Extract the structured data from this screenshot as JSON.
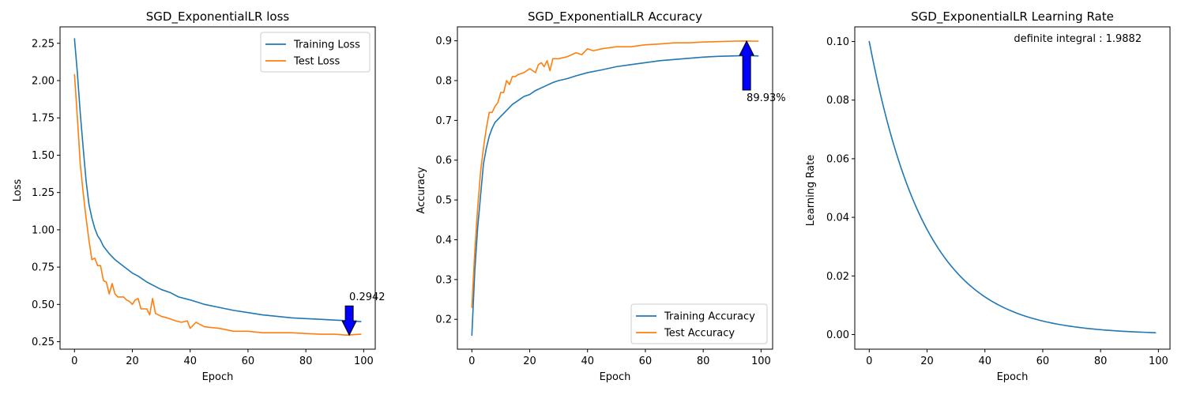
{
  "chart_data": [
    {
      "type": "line",
      "title": "SGD_ExponentialLR loss",
      "xlabel": "Epoch",
      "ylabel": "Loss",
      "xlim": [
        -5,
        104
      ],
      "ylim": [
        0.2,
        2.36
      ],
      "xticks": [
        0,
        20,
        40,
        60,
        80,
        100
      ],
      "xtick_labels": [
        "0",
        "20",
        "40",
        "60",
        "80",
        "100"
      ],
      "yticks": [
        0.25,
        0.5,
        0.75,
        1.0,
        1.25,
        1.5,
        1.75,
        2.0,
        2.25
      ],
      "ytick_labels": [
        "0.25",
        "0.50",
        "0.75",
        "1.00",
        "1.25",
        "1.50",
        "1.75",
        "2.00",
        "2.25"
      ],
      "grid": false,
      "legend": "upper-right",
      "series": [
        {
          "name": "Training Loss",
          "color": "#1f77b4",
          "points": [
            [
              0,
              2.28
            ],
            [
              1,
              2.05
            ],
            [
              2,
              1.78
            ],
            [
              3,
              1.55
            ],
            [
              4,
              1.33
            ],
            [
              5,
              1.17
            ],
            [
              6,
              1.08
            ],
            [
              7,
              1.01
            ],
            [
              8,
              0.96
            ],
            [
              9,
              0.93
            ],
            [
              10,
              0.89
            ],
            [
              12,
              0.84
            ],
            [
              14,
              0.8
            ],
            [
              16,
              0.77
            ],
            [
              18,
              0.74
            ],
            [
              20,
              0.71
            ],
            [
              22,
              0.69
            ],
            [
              25,
              0.65
            ],
            [
              28,
              0.62
            ],
            [
              30,
              0.6
            ],
            [
              33,
              0.58
            ],
            [
              36,
              0.55
            ],
            [
              40,
              0.53
            ],
            [
              45,
              0.5
            ],
            [
              50,
              0.48
            ],
            [
              55,
              0.46
            ],
            [
              60,
              0.445
            ],
            [
              65,
              0.43
            ],
            [
              70,
              0.42
            ],
            [
              75,
              0.41
            ],
            [
              80,
              0.405
            ],
            [
              85,
              0.4
            ],
            [
              90,
              0.395
            ],
            [
              95,
              0.39
            ],
            [
              99,
              0.385
            ]
          ]
        },
        {
          "name": "Test Loss",
          "color": "#ff7f0e",
          "points": [
            [
              0,
              2.04
            ],
            [
              1,
              1.75
            ],
            [
              2,
              1.44
            ],
            [
              3,
              1.25
            ],
            [
              4,
              1.08
            ],
            [
              5,
              0.93
            ],
            [
              6,
              0.8
            ],
            [
              7,
              0.81
            ],
            [
              8,
              0.76
            ],
            [
              9,
              0.76
            ],
            [
              10,
              0.66
            ],
            [
              11,
              0.65
            ],
            [
              12,
              0.57
            ],
            [
              13,
              0.64
            ],
            [
              14,
              0.57
            ],
            [
              15,
              0.55
            ],
            [
              16,
              0.55
            ],
            [
              17,
              0.55
            ],
            [
              18,
              0.53
            ],
            [
              19,
              0.52
            ],
            [
              20,
              0.5
            ],
            [
              21,
              0.53
            ],
            [
              22,
              0.54
            ],
            [
              23,
              0.47
            ],
            [
              24,
              0.47
            ],
            [
              25,
              0.47
            ],
            [
              26,
              0.43
            ],
            [
              27,
              0.54
            ],
            [
              28,
              0.44
            ],
            [
              30,
              0.42
            ],
            [
              32,
              0.41
            ],
            [
              35,
              0.39
            ],
            [
              37,
              0.38
            ],
            [
              39,
              0.39
            ],
            [
              40,
              0.34
            ],
            [
              42,
              0.38
            ],
            [
              45,
              0.35
            ],
            [
              50,
              0.34
            ],
            [
              55,
              0.32
            ],
            [
              60,
              0.32
            ],
            [
              65,
              0.31
            ],
            [
              70,
              0.31
            ],
            [
              75,
              0.31
            ],
            [
              80,
              0.305
            ],
            [
              85,
              0.3
            ],
            [
              90,
              0.3
            ],
            [
              94,
              0.2942
            ],
            [
              99,
              0.3
            ]
          ]
        }
      ],
      "annotations": [
        {
          "text": "0.2942",
          "x": 95,
          "y": 0.2942,
          "arrow": "down",
          "color": "#0000ff"
        }
      ]
    },
    {
      "type": "line",
      "title": "SGD_ExponentialLR Accuracy",
      "xlabel": "Epoch",
      "ylabel": "Accuracy",
      "xlim": [
        -5,
        104
      ],
      "ylim": [
        0.125,
        0.935
      ],
      "xticks": [
        0,
        20,
        40,
        60,
        80,
        100
      ],
      "xtick_labels": [
        "0",
        "20",
        "40",
        "60",
        "80",
        "100"
      ],
      "yticks": [
        0.2,
        0.3,
        0.4,
        0.5,
        0.6,
        0.7,
        0.8,
        0.9
      ],
      "ytick_labels": [
        "0.2",
        "0.3",
        "0.4",
        "0.5",
        "0.6",
        "0.7",
        "0.8",
        "0.9"
      ],
      "grid": false,
      "legend": "lower-right",
      "series": [
        {
          "name": "Training Accuracy",
          "color": "#1f77b4",
          "points": [
            [
              0,
              0.16
            ],
            [
              1,
              0.32
            ],
            [
              2,
              0.43
            ],
            [
              3,
              0.51
            ],
            [
              4,
              0.59
            ],
            [
              5,
              0.63
            ],
            [
              6,
              0.66
            ],
            [
              7,
              0.68
            ],
            [
              8,
              0.695
            ],
            [
              10,
              0.71
            ],
            [
              12,
              0.725
            ],
            [
              14,
              0.74
            ],
            [
              16,
              0.75
            ],
            [
              18,
              0.76
            ],
            [
              20,
              0.765
            ],
            [
              22,
              0.775
            ],
            [
              25,
              0.785
            ],
            [
              28,
              0.795
            ],
            [
              30,
              0.8
            ],
            [
              33,
              0.805
            ],
            [
              36,
              0.812
            ],
            [
              40,
              0.82
            ],
            [
              45,
              0.827
            ],
            [
              50,
              0.835
            ],
            [
              55,
              0.84
            ],
            [
              60,
              0.845
            ],
            [
              65,
              0.85
            ],
            [
              70,
              0.853
            ],
            [
              75,
              0.856
            ],
            [
              80,
              0.859
            ],
            [
              85,
              0.861
            ],
            [
              90,
              0.862
            ],
            [
              95,
              0.863
            ],
            [
              99,
              0.862
            ]
          ]
        },
        {
          "name": "Test Accuracy",
          "color": "#ff7f0e",
          "points": [
            [
              0,
              0.23
            ],
            [
              1,
              0.37
            ],
            [
              2,
              0.48
            ],
            [
              3,
              0.57
            ],
            [
              4,
              0.63
            ],
            [
              5,
              0.68
            ],
            [
              6,
              0.72
            ],
            [
              7,
              0.72
            ],
            [
              8,
              0.735
            ],
            [
              9,
              0.745
            ],
            [
              10,
              0.77
            ],
            [
              11,
              0.77
            ],
            [
              12,
              0.8
            ],
            [
              13,
              0.79
            ],
            [
              14,
              0.81
            ],
            [
              15,
              0.81
            ],
            [
              16,
              0.815
            ],
            [
              18,
              0.82
            ],
            [
              20,
              0.83
            ],
            [
              22,
              0.82
            ],
            [
              23,
              0.84
            ],
            [
              24,
              0.845
            ],
            [
              25,
              0.835
            ],
            [
              26,
              0.85
            ],
            [
              27,
              0.825
            ],
            [
              28,
              0.855
            ],
            [
              30,
              0.855
            ],
            [
              33,
              0.86
            ],
            [
              36,
              0.87
            ],
            [
              38,
              0.865
            ],
            [
              40,
              0.88
            ],
            [
              42,
              0.875
            ],
            [
              45,
              0.88
            ],
            [
              50,
              0.885
            ],
            [
              55,
              0.885
            ],
            [
              60,
              0.89
            ],
            [
              65,
              0.892
            ],
            [
              70,
              0.895
            ],
            [
              75,
              0.895
            ],
            [
              80,
              0.897
            ],
            [
              85,
              0.898
            ],
            [
              90,
              0.899
            ],
            [
              94,
              0.8993
            ],
            [
              99,
              0.899
            ]
          ]
        }
      ],
      "annotations": [
        {
          "text": "89.93%",
          "x": 95,
          "y": 0.8993,
          "arrow": "up",
          "color": "#0000ff"
        }
      ]
    },
    {
      "type": "line",
      "title": "SGD_ExponentialLR Learning Rate",
      "xlabel": "Epoch",
      "ylabel": "Learning Rate",
      "xlim": [
        -5,
        104
      ],
      "ylim": [
        -0.005,
        0.105
      ],
      "xticks": [
        0,
        20,
        40,
        60,
        80,
        100
      ],
      "xtick_labels": [
        "0",
        "20",
        "40",
        "60",
        "80",
        "100"
      ],
      "yticks": [
        0.0,
        0.02,
        0.04,
        0.06,
        0.08,
        0.1
      ],
      "ytick_labels": [
        "0.00",
        "0.02",
        "0.04",
        "0.06",
        "0.08",
        "0.10"
      ],
      "grid": false,
      "legend": "none",
      "series": [
        {
          "name": "",
          "color": "#1f77b4",
          "function": "exponential",
          "start_value": 0.1,
          "gamma": 0.95,
          "x_range": [
            0,
            99
          ]
        }
      ],
      "text_annotations": [
        {
          "text": "definite integral : 1.9882",
          "placement": "top-right"
        }
      ]
    }
  ]
}
